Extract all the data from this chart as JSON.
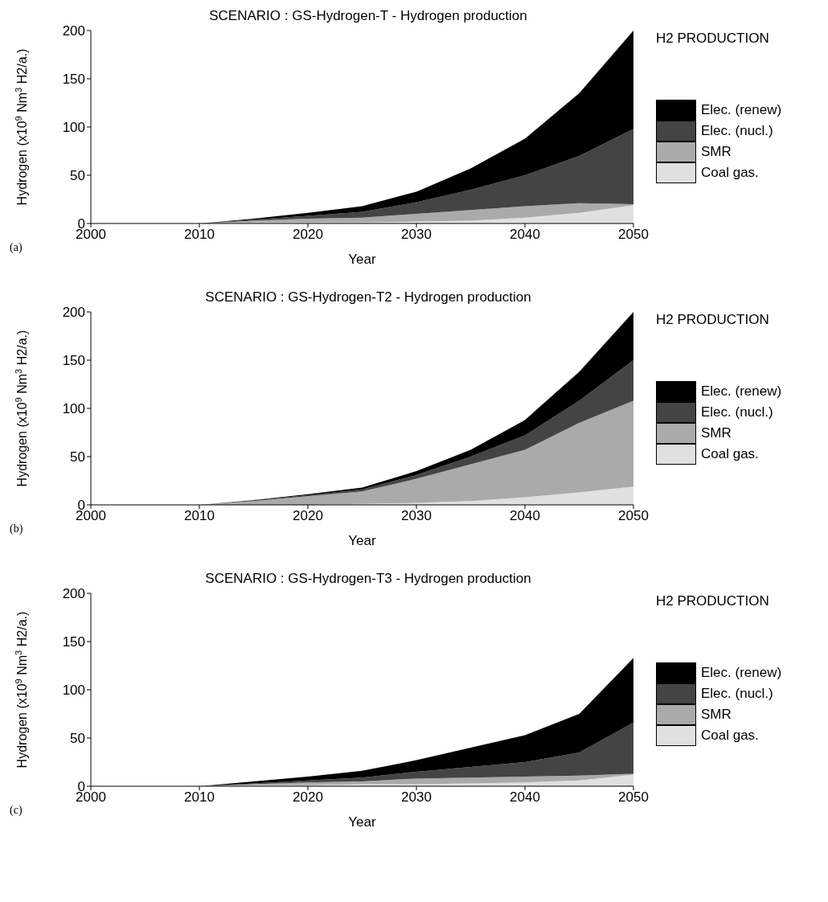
{
  "chart_data": [
    {
      "type": "area",
      "title": "SCENARIO : GS-Hydrogen-T - Hydrogen production",
      "xlabel": "Year",
      "ylabel": "Hydrogen (x10$^{9}$ Nm$^{3}$ H2/a.)",
      "legend_title": "H2 PRODUCTION",
      "legend": "right",
      "stacked": true,
      "annotations": [
        "(a)"
      ],
      "x": [
        2000,
        2005,
        2010,
        2015,
        2020,
        2025,
        2030,
        2035,
        2040,
        2045,
        2050
      ],
      "xlim": [
        2000,
        2050
      ],
      "xticks": [
        2000,
        2010,
        2020,
        2030,
        2040,
        2050
      ],
      "ylim": [
        0,
        200
      ],
      "yticks": [
        0,
        50,
        100,
        150,
        200
      ],
      "series": [
        {
          "name": "Coal gas.",
          "color": "#e0e0e0",
          "values": [
            0,
            0,
            0,
            1,
            1,
            1,
            2,
            3,
            6,
            11,
            19
          ]
        },
        {
          "name": "SMR",
          "color": "#aaaaaa",
          "values": [
            0,
            0,
            0,
            2,
            4,
            5,
            8,
            11,
            12,
            10,
            1
          ]
        },
        {
          "name": "Elec. (nucl.)",
          "color": "#444444",
          "values": [
            0,
            0,
            0,
            1,
            3,
            6,
            12,
            21,
            32,
            49,
            78
          ]
        },
        {
          "name": "Elec. (renew)",
          "color": "#000000",
          "values": [
            0,
            0,
            0,
            1,
            3,
            6,
            11,
            22,
            38,
            65,
            102
          ]
        }
      ]
    },
    {
      "type": "area",
      "title": "SCENARIO : GS-Hydrogen-T2 - Hydrogen production",
      "xlabel": "Year",
      "ylabel": "Hydrogen (x10$^{9}$ Nm$^{3}$ H2/a.)",
      "legend_title": "H2 PRODUCTION",
      "legend": "right",
      "stacked": true,
      "annotations": [
        "(b)"
      ],
      "x": [
        2000,
        2005,
        2010,
        2015,
        2020,
        2025,
        2030,
        2035,
        2040,
        2045,
        2050
      ],
      "xlim": [
        2000,
        2050
      ],
      "xticks": [
        2000,
        2010,
        2020,
        2030,
        2040,
        2050
      ],
      "ylim": [
        0,
        200
      ],
      "yticks": [
        0,
        50,
        100,
        150,
        200
      ],
      "series": [
        {
          "name": "Coal gas.",
          "color": "#e0e0e0",
          "values": [
            0,
            0,
            0,
            0,
            0,
            1,
            2,
            4,
            8,
            13,
            19
          ]
        },
        {
          "name": "SMR",
          "color": "#aaaaaa",
          "values": [
            0,
            0,
            0,
            4,
            9,
            13,
            25,
            38,
            49,
            72,
            89
          ]
        },
        {
          "name": "Elec. (nucl.)",
          "color": "#444444",
          "values": [
            0,
            0,
            0,
            1,
            1,
            2,
            4,
            8,
            15,
            23,
            42
          ]
        },
        {
          "name": "Elec. (renew)",
          "color": "#000000",
          "values": [
            0,
            0,
            0,
            0,
            1,
            2,
            4,
            7,
            16,
            30,
            50
          ]
        }
      ]
    },
    {
      "type": "area",
      "title": "SCENARIO : GS-Hydrogen-T3 - Hydrogen production",
      "xlabel": "Year",
      "ylabel": "Hydrogen (x10$^{9}$ Nm$^{3}$ H2/a.)",
      "legend_title": "H2 PRODUCTION",
      "legend": "right",
      "stacked": true,
      "annotations": [
        "(c)"
      ],
      "x": [
        2000,
        2005,
        2010,
        2015,
        2020,
        2025,
        2030,
        2035,
        2040,
        2045,
        2050
      ],
      "xlim": [
        2000,
        2050
      ],
      "xticks": [
        2000,
        2010,
        2020,
        2030,
        2040,
        2050
      ],
      "ylim": [
        0,
        200
      ],
      "yticks": [
        0,
        50,
        100,
        150,
        200
      ],
      "series": [
        {
          "name": "Coal gas.",
          "color": "#e0e0e0",
          "values": [
            0,
            0,
            0,
            1,
            1,
            2,
            2,
            3,
            4,
            6,
            12
          ]
        },
        {
          "name": "SMR",
          "color": "#aaaaaa",
          "values": [
            0,
            0,
            0,
            1,
            3,
            3,
            6,
            6,
            6,
            5,
            1
          ]
        },
        {
          "name": "Elec. (nucl.)",
          "color": "#444444",
          "values": [
            0,
            0,
            0,
            1,
            2,
            4,
            7,
            11,
            15,
            24,
            53
          ]
        },
        {
          "name": "Elec. (renew)",
          "color": "#000000",
          "values": [
            0,
            0,
            0,
            2,
            4,
            7,
            12,
            20,
            28,
            40,
            67
          ]
        }
      ]
    }
  ]
}
